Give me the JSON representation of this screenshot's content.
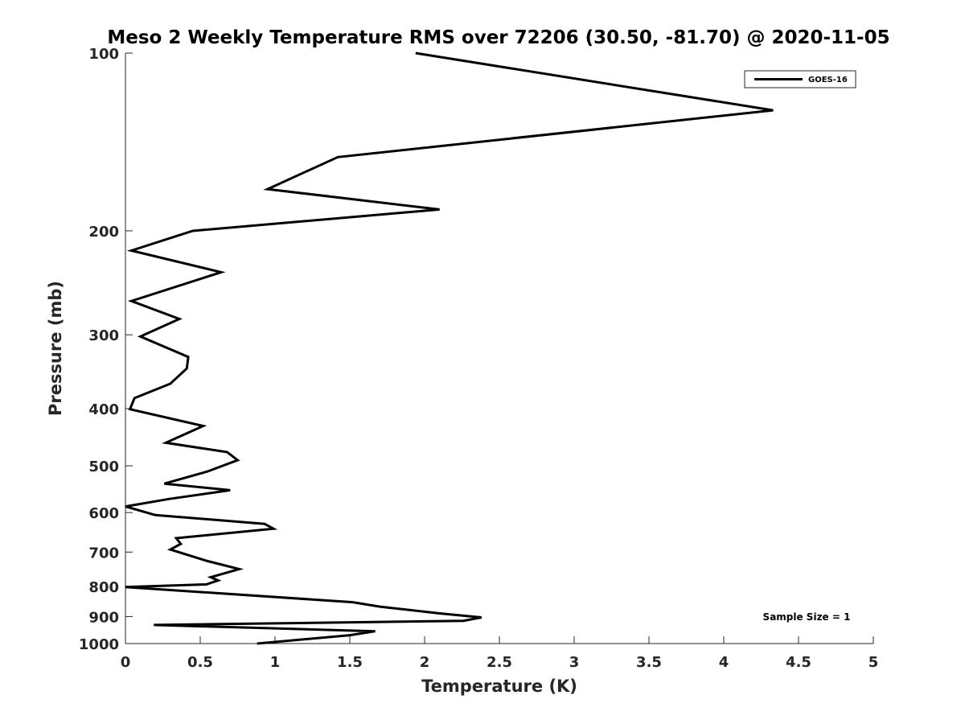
{
  "chart_data": {
    "type": "line",
    "title": "Meso 2 Weekly Temperature RMS over 72206 (30.50, -81.70) @ 2020-11-05",
    "xlabel": "Temperature (K)",
    "ylabel": "Pressure (mb)",
    "xlim": [
      0,
      5
    ],
    "ylim": [
      100,
      1000
    ],
    "yscale": "log",
    "y_reversed": true,
    "grid": false,
    "legend_position": "top-right",
    "x_ticks": [
      "0",
      "0.5",
      "1",
      "1.5",
      "2",
      "2.5",
      "3",
      "3.5",
      "4",
      "4.5",
      "5"
    ],
    "y_ticks": [
      "100",
      "200",
      "300",
      "400",
      "500",
      "600",
      "700",
      "800",
      "900",
      "1000"
    ],
    "annotation": "Sample Size = 1",
    "series": [
      {
        "name": "GOES-16",
        "color": "#000000",
        "points": [
          [
            1.94,
            100
          ],
          [
            4.33,
            125
          ],
          [
            1.42,
            150
          ],
          [
            0.95,
            170
          ],
          [
            2.1,
            184
          ],
          [
            0.45,
            200
          ],
          [
            0.04,
            216
          ],
          [
            0.64,
            235
          ],
          [
            0.04,
            263
          ],
          [
            0.36,
            282
          ],
          [
            0.1,
            302
          ],
          [
            0.42,
            327
          ],
          [
            0.41,
            342
          ],
          [
            0.3,
            363
          ],
          [
            0.06,
            384
          ],
          [
            0.03,
            401
          ],
          [
            0.52,
            428
          ],
          [
            0.27,
            457
          ],
          [
            0.68,
            474
          ],
          [
            0.75,
            489
          ],
          [
            0.55,
            511
          ],
          [
            0.26,
            536
          ],
          [
            0.7,
            550
          ],
          [
            0.29,
            569
          ],
          [
            0.0,
            586
          ],
          [
            0.2,
            606
          ],
          [
            0.93,
            627
          ],
          [
            0.99,
            639
          ],
          [
            0.34,
            663
          ],
          [
            0.37,
            678
          ],
          [
            0.3,
            693
          ],
          [
            0.54,
            724
          ],
          [
            0.76,
            748
          ],
          [
            0.57,
            772
          ],
          [
            0.62,
            782
          ],
          [
            0.54,
            794
          ],
          [
            0.0,
            802
          ],
          [
            1.52,
            851
          ],
          [
            1.7,
            866
          ],
          [
            2.1,
            889
          ],
          [
            2.38,
            903
          ],
          [
            2.26,
            915
          ],
          [
            0.19,
            930
          ],
          [
            1.67,
            953
          ],
          [
            1.5,
            968
          ],
          [
            0.88,
            1000
          ]
        ]
      }
    ]
  }
}
